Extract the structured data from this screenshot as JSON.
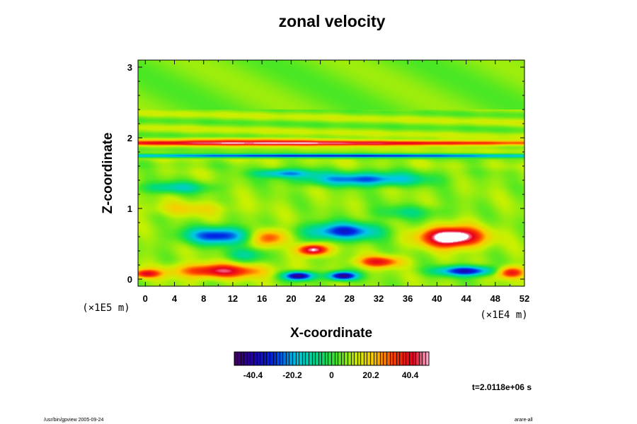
{
  "chart_data": {
    "type": "heatmap",
    "title": "zonal velocity",
    "xlabel": "X-coordinate",
    "ylabel": "Z-coordinate",
    "x_unit_label": "(×1E4 m)",
    "z_unit_label": "(×1E5 m)",
    "xlim": [
      -1,
      52
    ],
    "ylim": [
      -0.1,
      3.1
    ],
    "x_ticks": [
      "0",
      "4",
      "8",
      "12",
      "16",
      "20",
      "24",
      "28",
      "32",
      "36",
      "40",
      "44",
      "48",
      "52"
    ],
    "y_ticks": [
      "0",
      "1",
      "2",
      "3"
    ],
    "x_tick_values": [
      0,
      4,
      8,
      12,
      16,
      20,
      24,
      28,
      32,
      36,
      40,
      44,
      48,
      52
    ],
    "y_tick_values": [
      0,
      1,
      2,
      3
    ],
    "colorbar": {
      "range": [
        -50,
        50
      ],
      "tick_labels": [
        "-40.4",
        "-20.2",
        "0",
        "20.2",
        "40.4"
      ],
      "tick_values": [
        -40.4,
        -20.2,
        0,
        20.2,
        40.4
      ]
    },
    "features": [
      {
        "x": 24,
        "z": 1.93,
        "sx": 40,
        "sz": 0.035,
        "value": 40
      },
      {
        "x": 15,
        "z": 1.98,
        "sx": 12,
        "sz": 0.03,
        "value": 14
      },
      {
        "x": 24,
        "z": 1.75,
        "sx": 40,
        "sz": 0.025,
        "value": -40
      },
      {
        "x": 30,
        "z": 1.42,
        "sx": 8,
        "sz": 0.09,
        "value": -36
      },
      {
        "x": 19,
        "z": 1.5,
        "sx": 4,
        "sz": 0.06,
        "value": -30
      },
      {
        "x": 4,
        "z": 1.3,
        "sx": 5,
        "sz": 0.08,
        "value": -20
      },
      {
        "x": 10,
        "z": 0.62,
        "sx": 4.5,
        "sz": 0.12,
        "value": -40
      },
      {
        "x": 27,
        "z": 0.68,
        "sx": 5,
        "sz": 0.12,
        "value": -40
      },
      {
        "x": 42,
        "z": 0.6,
        "sx": 4,
        "sz": 0.14,
        "value": 55
      },
      {
        "x": 44,
        "z": 0.12,
        "sx": 4,
        "sz": 0.07,
        "value": -45
      },
      {
        "x": 21,
        "z": 0.05,
        "sx": 2,
        "sz": 0.06,
        "value": -55
      },
      {
        "x": 27,
        "z": 0.05,
        "sx": 2,
        "sz": 0.06,
        "value": -55
      },
      {
        "x": 10,
        "z": 0.12,
        "sx": 6,
        "sz": 0.1,
        "value": 35
      },
      {
        "x": 0,
        "z": 0.08,
        "sx": 2,
        "sz": 0.06,
        "value": 30
      },
      {
        "x": 17,
        "z": 0.6,
        "sx": 2.5,
        "sz": 0.12,
        "value": 28
      },
      {
        "x": 23,
        "z": 0.42,
        "sx": 2,
        "sz": 0.08,
        "value": 45
      },
      {
        "x": 32,
        "z": 0.25,
        "sx": 3,
        "sz": 0.08,
        "value": 30
      },
      {
        "x": 50,
        "z": 0.1,
        "sx": 2,
        "sz": 0.08,
        "value": 35
      },
      {
        "x": 36,
        "z": 0.95,
        "sx": 5,
        "sz": 0.1,
        "value": -12
      },
      {
        "x": 6,
        "z": 1.0,
        "sx": 6,
        "sz": 0.1,
        "value": 10
      },
      {
        "x": 14,
        "z": 0.35,
        "sx": 3,
        "sz": 0.1,
        "value": -15
      }
    ],
    "grid": false,
    "legend": "colorbar-bottom"
  },
  "footer": {
    "left": "/usr/bin/gpview 2005-09-24",
    "right": "arare-all"
  },
  "time_label": "t=2.0118e+06 s",
  "colors": {
    "background": "#ffffff",
    "frame": "#000000"
  }
}
